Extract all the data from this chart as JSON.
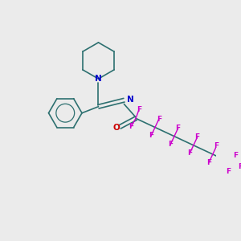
{
  "bg_color": "#ebebeb",
  "bond_color": "#2d7070",
  "N_color": "#0000cc",
  "O_color": "#cc0000",
  "F_color": "#cc00cc",
  "bond_width": 1.2,
  "figsize": [
    3.0,
    3.0
  ],
  "dpi": 100,
  "xlim": [
    0,
    10
  ],
  "ylim": [
    0,
    10
  ]
}
